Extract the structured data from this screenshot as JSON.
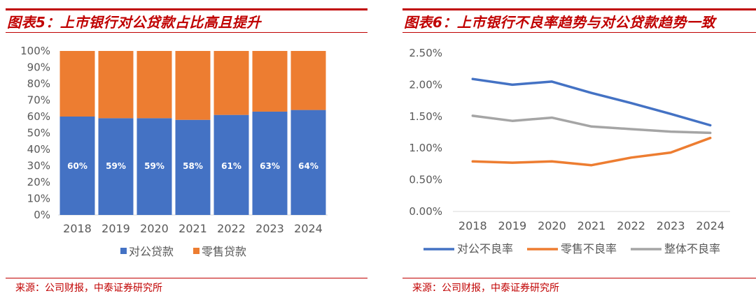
{
  "colors": {
    "accent": "#c00000",
    "corporate": "#4472c4",
    "retail": "#ed7d31",
    "overall": "#a5a5a5"
  },
  "left": {
    "title": "图表5：上市银行对公贷款占比高且提升",
    "source": "来源：公司财报，中泰证券研究所"
  },
  "right": {
    "title": "图表6：上市银行不良率趋势与对公贷款趋势一致",
    "source": "来源：公司财报，中泰证券研究所"
  },
  "chart_data": [
    {
      "type": "bar",
      "stacked": true,
      "title": "图表5：上市银行对公贷款占比高且提升",
      "categories": [
        "2018",
        "2019",
        "2020",
        "2021",
        "2022",
        "2023",
        "2024"
      ],
      "series": [
        {
          "name": "对公贷款",
          "values": [
            60,
            59,
            59,
            58,
            61,
            63,
            64
          ],
          "labels": [
            "60%",
            "59%",
            "59%",
            "58%",
            "61%",
            "63%",
            "64%"
          ]
        },
        {
          "name": "零售贷款",
          "values": [
            40,
            41,
            41,
            42,
            39,
            37,
            36
          ]
        }
      ],
      "ylim": [
        0,
        100
      ],
      "yticks": [
        "0%",
        "10%",
        "20%",
        "30%",
        "40%",
        "50%",
        "60%",
        "70%",
        "80%",
        "90%",
        "100%"
      ],
      "legend": "bottom",
      "grid": false
    },
    {
      "type": "line",
      "title": "图表6：上市银行不良率趋势与对公贷款趋势一致",
      "categories": [
        "2018",
        "2019",
        "2020",
        "2021",
        "2022",
        "2023",
        "2024"
      ],
      "series": [
        {
          "name": "对公不良率",
          "values": [
            2.09,
            2.0,
            2.05,
            1.87,
            1.71,
            1.54,
            1.36
          ]
        },
        {
          "name": "零售不良率",
          "values": [
            0.79,
            0.77,
            0.79,
            0.73,
            0.85,
            0.93,
            1.16
          ]
        },
        {
          "name": "整体不良率",
          "values": [
            1.51,
            1.43,
            1.48,
            1.34,
            1.3,
            1.26,
            1.24
          ]
        }
      ],
      "ylim": [
        0,
        2.5
      ],
      "yticks": [
        "0.00%",
        "0.50%",
        "1.00%",
        "1.50%",
        "2.00%",
        "2.50%"
      ],
      "legend": "bottom",
      "grid": false
    }
  ]
}
